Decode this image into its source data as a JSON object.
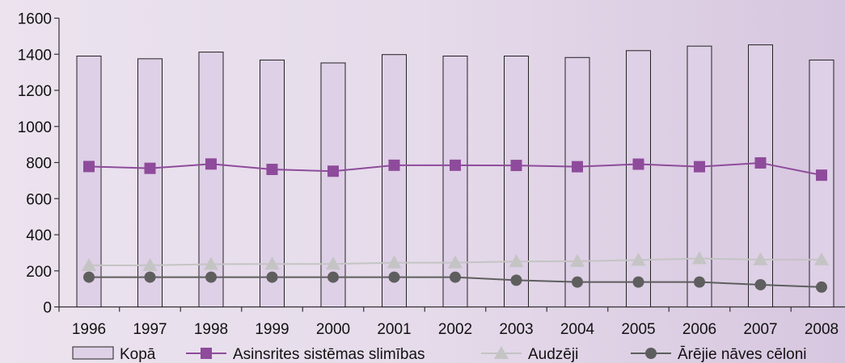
{
  "chart_data": {
    "type": "bar",
    "categories": [
      "1996",
      "1997",
      "1998",
      "1999",
      "2000",
      "2001",
      "2002",
      "2003",
      "2004",
      "2005",
      "2006",
      "2007",
      "2008"
    ],
    "ylim": [
      0,
      1600
    ],
    "yticks": [
      0,
      200,
      400,
      600,
      800,
      1000,
      1200,
      1400,
      1600
    ],
    "grid": false,
    "legend_position": "bottom",
    "series": [
      {
        "name": "Kopā",
        "type": "bar",
        "color": "#ded0e6",
        "values": [
          1390,
          1375,
          1412,
          1368,
          1352,
          1398,
          1390,
          1390,
          1382,
          1420,
          1445,
          1452,
          1368
        ]
      },
      {
        "name": "Asinsrites sistēmas slimības",
        "type": "line",
        "marker": "square",
        "color": "#8e4b9b",
        "values": [
          778,
          768,
          792,
          762,
          752,
          785,
          785,
          784,
          777,
          791,
          777,
          798,
          730
        ]
      },
      {
        "name": "Audzēji",
        "type": "line",
        "marker": "triangle",
        "color": "#c4c4c4",
        "values": [
          230,
          231,
          237,
          238,
          238,
          245,
          245,
          252,
          253,
          260,
          268,
          262,
          262
        ]
      },
      {
        "name": "Ārējie nāves cēloni",
        "type": "line",
        "marker": "circle",
        "color": "#5e5e5e",
        "values": [
          165,
          165,
          165,
          165,
          165,
          165,
          165,
          148,
          138,
          138,
          138,
          123,
          110
        ]
      }
    ]
  }
}
